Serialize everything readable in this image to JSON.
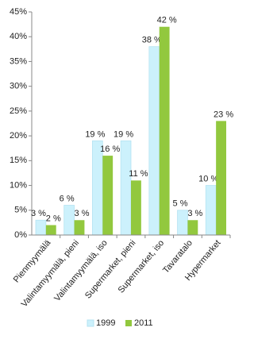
{
  "chart_data": {
    "type": "bar",
    "categories": [
      "Pienmyymälä",
      "Valintamyymälä, pieni",
      "Valintamyymälä, iso",
      "Supermarket, pieni",
      "Supermarket, iso",
      "Tavaratalo",
      "Hypermarket"
    ],
    "series": [
      {
        "name": "1999",
        "color": "#ccf1fc",
        "values": [
          3,
          6,
          19,
          19,
          38,
          5,
          10
        ],
        "value_labels": [
          "3 %",
          "6 %",
          "19 %",
          "19 %",
          "38 %",
          "5 %",
          "10 %"
        ]
      },
      {
        "name": "2011",
        "color": "#92c83e",
        "values": [
          2,
          3,
          16,
          11,
          42,
          3,
          23
        ],
        "value_labels": [
          "2 %",
          "3 %",
          "16 %",
          "11 %",
          "42 %",
          "3 %",
          "23 %"
        ]
      }
    ],
    "ylim": [
      0,
      45
    ],
    "yticks": [
      {
        "value": 0,
        "label": "0%"
      },
      {
        "value": 5,
        "label": "5%"
      },
      {
        "value": 10,
        "label": "10%"
      },
      {
        "value": 15,
        "label": "15%"
      },
      {
        "value": 20,
        "label": "20%"
      },
      {
        "value": 25,
        "label": "25%"
      },
      {
        "value": 30,
        "label": "30%"
      },
      {
        "value": 35,
        "label": "35%"
      },
      {
        "value": 40,
        "label": "40%"
      },
      {
        "value": 45,
        "label": "45%"
      }
    ],
    "grid": false,
    "legend": "bottom"
  }
}
